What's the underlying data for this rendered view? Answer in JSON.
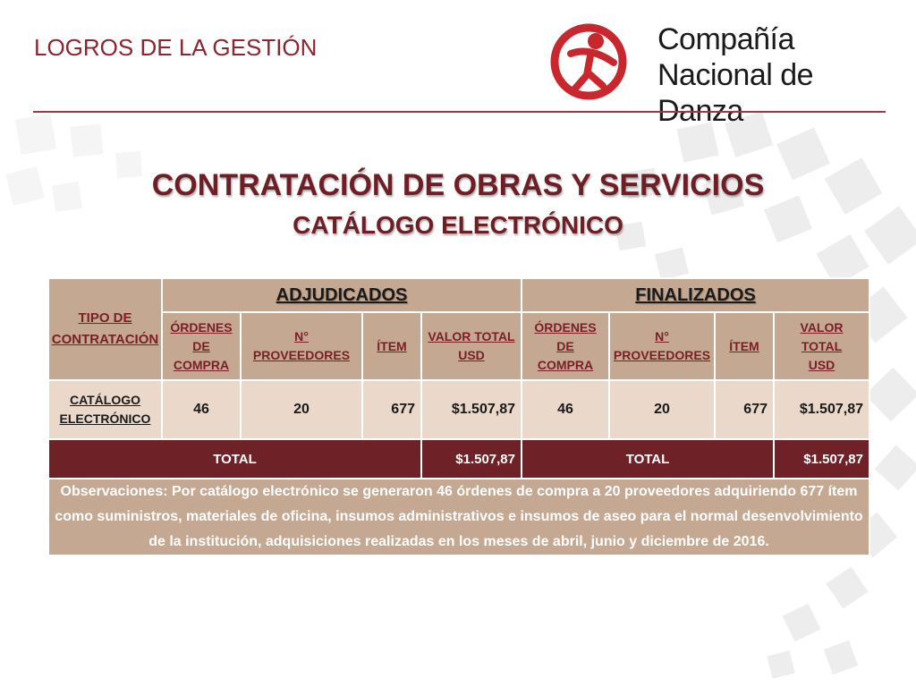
{
  "header": {
    "section_title": "LOGROS DE LA GESTIÓN",
    "logo_line1": "Compañía",
    "logo_line2": "Nacional de Danza"
  },
  "title": "CONTRATACIÓN DE OBRAS Y SERVICIOS",
  "subtitle": "CATÁLOGO ELECTRÓNICO",
  "table": {
    "tipo_line1": "TIPO DE",
    "tipo_line2": "CONTRATACIÓN",
    "group_adjudicados": "ADJUDICADOS",
    "group_finalizados": "FINALIZADOS",
    "adj_headers": {
      "ordenes": [
        "ÓRDENES",
        "DE",
        "COMPRA"
      ],
      "proveedores": [
        "N°",
        "PROVEEDORES"
      ],
      "item": "ÍTEM",
      "valor": [
        "VALOR TOTAL",
        "USD"
      ]
    },
    "fin_headers": {
      "ordenes": [
        "ÓRDENES",
        "DE",
        "COMPRA"
      ],
      "proveedores": [
        "N°",
        "PROVEEDORES"
      ],
      "item": "ÍTEM",
      "valor": [
        "VALOR",
        "TOTAL",
        "USD"
      ]
    },
    "row": {
      "tipo_line1": "CATÁLOGO",
      "tipo_line2": "ELECTRÓNICO",
      "adj": {
        "ordenes": "46",
        "proveedores": "20",
        "item": "677",
        "valor": "$1.507,87"
      },
      "fin": {
        "ordenes": "46",
        "proveedores": "20",
        "item": "677",
        "valor": "$1.507,87"
      }
    },
    "total": {
      "adj_label": "TOTAL",
      "adj_value": "$1.507,87",
      "fin_label": "TOTAL",
      "fin_value": "$1.507,87"
    },
    "observaciones": "Observaciones: Por catálogo electrónico se generaron 46 órdenes de compra a 20 proveedores adquiriendo 677 ítem como suministros, materiales de oficina, insumos administrativos e insumos de aseo para el normal desenvolvimiento de la institución, adquisiciones realizadas en los meses de abril, junio y diciembre de 2016."
  },
  "colors": {
    "brand_red": "#c8282d",
    "title_maroon": "#6e1e25",
    "header_tan": "#c5a891",
    "data_beige": "#ead8cb",
    "total_maroon": "#6e2228"
  }
}
